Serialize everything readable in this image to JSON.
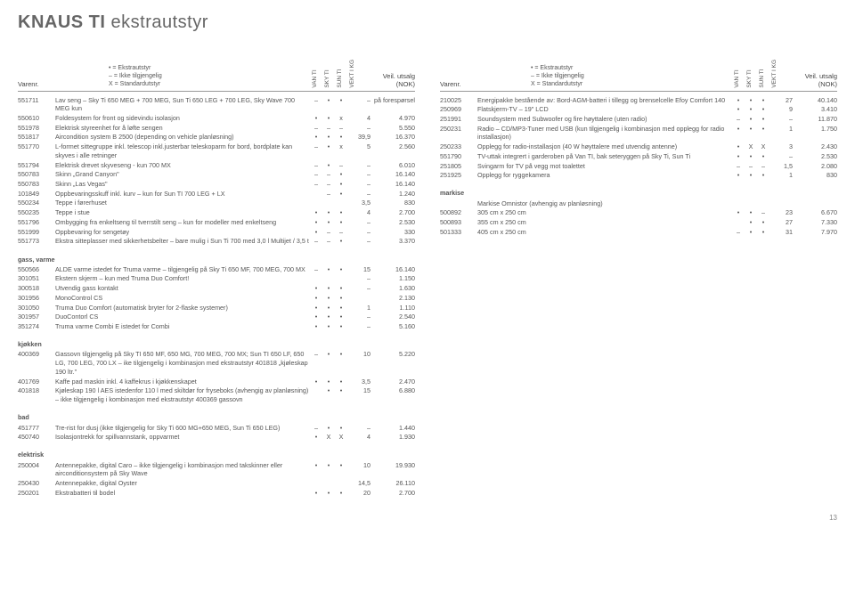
{
  "title_bold": "KNAUS TI",
  "title_light": "ekstrautstyr",
  "page_number": "13",
  "legend": {
    "l1": "•  = Ekstrautstyr",
    "l2": "–  = Ikke tilgjengelig",
    "l3": "X  = Standardutstyr"
  },
  "header": {
    "varenr": "Varenr.",
    "rot1": "VAN TI",
    "rot2": "SKY TI",
    "rot3": "SUN TI",
    "rot4": "VEKT I KG",
    "price1": "Veil. utsalg",
    "price2": "(NOK)"
  },
  "left_rows": [
    {
      "n": "551711",
      "d": "Lav seng – Sky Ti 650 MEG + 700 MEG, Sun Ti 650 LEG + 700 LEG, Sky Wave 700 MEG kun",
      "c1": "–",
      "c2": "•",
      "c3": "•",
      "w": "–",
      "p": "på forespørsel"
    },
    {
      "n": "550610",
      "d": "Foldesystem for front og sidevindu isolasjon",
      "c1": "•",
      "c2": "•",
      "c3": "x",
      "w": "4",
      "p": "4.970"
    },
    {
      "n": "551978",
      "d": "Elektrisk styreenhet for å løfte sengen",
      "c1": "–",
      "c2": "–",
      "c3": "–",
      "w": "–",
      "p": "5.550"
    },
    {
      "n": "551817",
      "d": "Aircondition system B 2500 (depending on vehicle planløsning)",
      "c1": "•",
      "c2": "•",
      "c3": "•",
      "w": "39,9",
      "p": "16.370"
    },
    {
      "n": "551770",
      "d": "L-formet sittegruppe inkl. telescop inkl.justerbar teleskoparm for bord, bordplate kan skyves i alle retninger",
      "c1": "–",
      "c2": "•",
      "c3": "x",
      "w": "5",
      "p": "2.560"
    },
    {
      "n": "551794",
      "d": "Elektrisk drevet skyveseng - kun 700 MX",
      "c1": "–",
      "c2": "•",
      "c3": "–",
      "w": "–",
      "p": "6.010"
    },
    {
      "n": "550783",
      "d": "Skinn „Grand Canyon\"",
      "c1": "–",
      "c2": "–",
      "c3": "•",
      "w": "–",
      "p": "16.140"
    },
    {
      "n": "550783",
      "d": "Skinn „Las Vegas\"",
      "c1": "–",
      "c2": "–",
      "c3": "•",
      "w": "–",
      "p": "16.140"
    },
    {
      "n": "101849",
      "d": "Oppbevaringsskuff inkl. kurv – kun for Sun TI 700 LEG + LX",
      "c1": "",
      "c2": "–",
      "c3": "•",
      "w": "–",
      "p": "1.240"
    },
    {
      "n": "550234",
      "d": "Teppe i førerhuset",
      "c1": "",
      "c2": "",
      "c3": "",
      "w": "3,5",
      "p": "830"
    },
    {
      "n": "550235",
      "d": "Teppe i stue",
      "c1": "•",
      "c2": "•",
      "c3": "•",
      "w": "4",
      "p": "2.700"
    },
    {
      "n": "551796",
      "d": "Ombygging fra enkeltseng til tverrstilt seng – kun for modeller med enkeltseng",
      "c1": "•",
      "c2": "•",
      "c3": "•",
      "w": "–",
      "p": "2.530"
    },
    {
      "n": "551999",
      "d": "Oppbevaring for sengetøy",
      "c1": "•",
      "c2": "–",
      "c3": "–",
      "w": "–",
      "p": "330"
    },
    {
      "n": "551773",
      "d": "Ekstra sitteplasser med sikkerhetsbelter – bare mulig i Sun Ti 700 med 3,0 l Multijet / 3,5 t",
      "c1": "–",
      "c2": "–",
      "c3": "•",
      "w": "–",
      "p": "3.370"
    },
    {
      "section": "gass, varme"
    },
    {
      "n": "550566",
      "d": "ALDE varme istedet for Truma varme – tilgjengelig på Sky Ti 650 MF, 700 MEG, 700 MX",
      "c1": "–",
      "c2": "•",
      "c3": "•",
      "w": "15",
      "p": "16.140"
    },
    {
      "n": "301051",
      "d": "Ekstern skjerm – kun med Truma Duo Comfort!",
      "c1": "",
      "c2": "",
      "c3": "",
      "w": "–",
      "p": "1.150"
    },
    {
      "n": "300518",
      "d": "Utvendig gass kontakt",
      "c1": "•",
      "c2": "•",
      "c3": "•",
      "w": "–",
      "p": "1.630"
    },
    {
      "n": "301956",
      "d": "MonoControl CS",
      "c1": "•",
      "c2": "•",
      "c3": "•",
      "w": "",
      "p": "2.130"
    },
    {
      "n": "301050",
      "d": "Truma Duo Comfort (automatisk bryter for 2-flaske systemer)",
      "c1": "•",
      "c2": "•",
      "c3": "•",
      "w": "1",
      "p": "1.110"
    },
    {
      "n": "301957",
      "d": "DuoContorl CS",
      "c1": "•",
      "c2": "•",
      "c3": "•",
      "w": "–",
      "p": "2.540"
    },
    {
      "n": "351274",
      "d": "Truma varme Combi E istedet for Combi",
      "c1": "•",
      "c2": "•",
      "c3": "•",
      "w": "–",
      "p": "5.160"
    },
    {
      "section": "kjøkken"
    },
    {
      "n": "400369",
      "d": "Gassovn tilgjengelig på Sky TI 650 MF, 650 MG, 700 MEG, 700 MX; Sun TI 650 LF, 650 LG, 700 LEG, 700 LX – ike tilgjengelig i kombinasjon med ekstrautstyr 401818 „kjøleskap 190 ltr.\"",
      "c1": "–",
      "c2": "•",
      "c3": "•",
      "w": "10",
      "p": "5.220"
    },
    {
      "n": "401769",
      "d": "Kaffe pad maskin inkl. 4 kaffekrus i kjøkkenskapet",
      "c1": "•",
      "c2": "•",
      "c3": "•",
      "w": "3,5",
      "p": "2.470"
    },
    {
      "n": "401818",
      "d": "Kjøleskap 190 l AES istedenfor 110 l med skiltdør for fryseboks (avhengig av planløsning) – ikke tilgjengelig i kombinasjon med ekstrautstyr 400369 gassovn",
      "c1": "",
      "c2": "•",
      "c3": "•",
      "w": "15",
      "p": "6.880"
    },
    {
      "section": "bad"
    },
    {
      "n": "451777",
      "d": "Tre-rist for dusj (ikke tilgjengelig for Sky Ti 600 MG+650 MEG, Sun Ti 650 LEG)",
      "c1": "–",
      "c2": "•",
      "c3": "•",
      "w": "–",
      "p": "1.440"
    },
    {
      "n": "450740",
      "d": "Isolasjontrekk for spillvannstank, oppvarmet",
      "c1": "•",
      "c2": "X",
      "c3": "X",
      "w": "4",
      "p": "1.930"
    },
    {
      "section": "elektrisk"
    },
    {
      "n": "250004",
      "d": "Antennepakke, digital Caro – ikke tilgjengelig i kombinasjon med takskinner eller airconditionsystem på Sky Wave",
      "c1": "•",
      "c2": "•",
      "c3": "•",
      "w": "10",
      "p": "19.930"
    },
    {
      "n": "250430",
      "d": "Antennepakke, digital Oyster",
      "c1": "",
      "c2": "",
      "c3": "",
      "w": "14,5",
      "p": "26.110"
    },
    {
      "n": "250201",
      "d": "Ekstrabatteri til bodel",
      "c1": "•",
      "c2": "•",
      "c3": "•",
      "w": "20",
      "p": "2.700"
    }
  ],
  "right_rows": [
    {
      "n": "210025",
      "d": "Energipakke bestående av: Bord-AGM-batteri i tillegg og brenselcelle Efoy Comfort 140",
      "c1": "•",
      "c2": "•",
      "c3": "•",
      "w": "27",
      "p": "40.140"
    },
    {
      "n": "250969",
      "d": "Flatskjerm-TV – 19\" LCD",
      "c1": "•",
      "c2": "•",
      "c3": "•",
      "w": "9",
      "p": "3.410"
    },
    {
      "n": "251991",
      "d": "Soundsystem med Subwoofer og fire høyttalere (uten radio)",
      "c1": "–",
      "c2": "•",
      "c3": "•",
      "w": "–",
      "p": "11.870"
    },
    {
      "n": "250231",
      "d": "Radio – CD/MP3-Tuner med USB (kun tilgjengelig i kombinasjon med opplegg for radio installasjon)",
      "c1": "•",
      "c2": "•",
      "c3": "•",
      "w": "1",
      "p": "1.750"
    },
    {
      "n": "250233",
      "d": "Opplegg for radio-installasjon (40 W høyttalere med utvendig antenne)",
      "c1": "•",
      "c2": "X",
      "c3": "X",
      "w": "3",
      "p": "2.430"
    },
    {
      "n": "551790",
      "d": "TV-uttak integrert i garderoben på Van TI, bak seteryggen på Sky Ti, Sun Ti",
      "c1": "•",
      "c2": "•",
      "c3": "•",
      "w": "–",
      "p": "2.530"
    },
    {
      "n": "251805",
      "d": "Svingarm for TV på vegg mot toalettet",
      "c1": "–",
      "c2": "–",
      "c3": "–",
      "w": "1,5",
      "p": "2.080"
    },
    {
      "n": "251925",
      "d": "Opplegg for ryggekamera",
      "c1": "•",
      "c2": "•",
      "c3": "•",
      "w": "1",
      "p": "830"
    },
    {
      "section": "markise"
    },
    {
      "n": "",
      "d": "Markise Omnistor (avhengig av planløsning)",
      "c1": "",
      "c2": "",
      "c3": "",
      "w": "",
      "p": ""
    },
    {
      "n": "500892",
      "d": "305 cm x 250 cm",
      "c1": "•",
      "c2": "•",
      "c3": "–",
      "w": "23",
      "p": "6.670"
    },
    {
      "n": "500893",
      "d": "355 cm x 250 cm",
      "c1": "",
      "c2": "•",
      "c3": "•",
      "w": "27",
      "p": "7.330"
    },
    {
      "n": "501333",
      "d": "405 cm x 250 cm",
      "c1": "–",
      "c2": "•",
      "c3": "•",
      "w": "31",
      "p": "7.970"
    }
  ]
}
